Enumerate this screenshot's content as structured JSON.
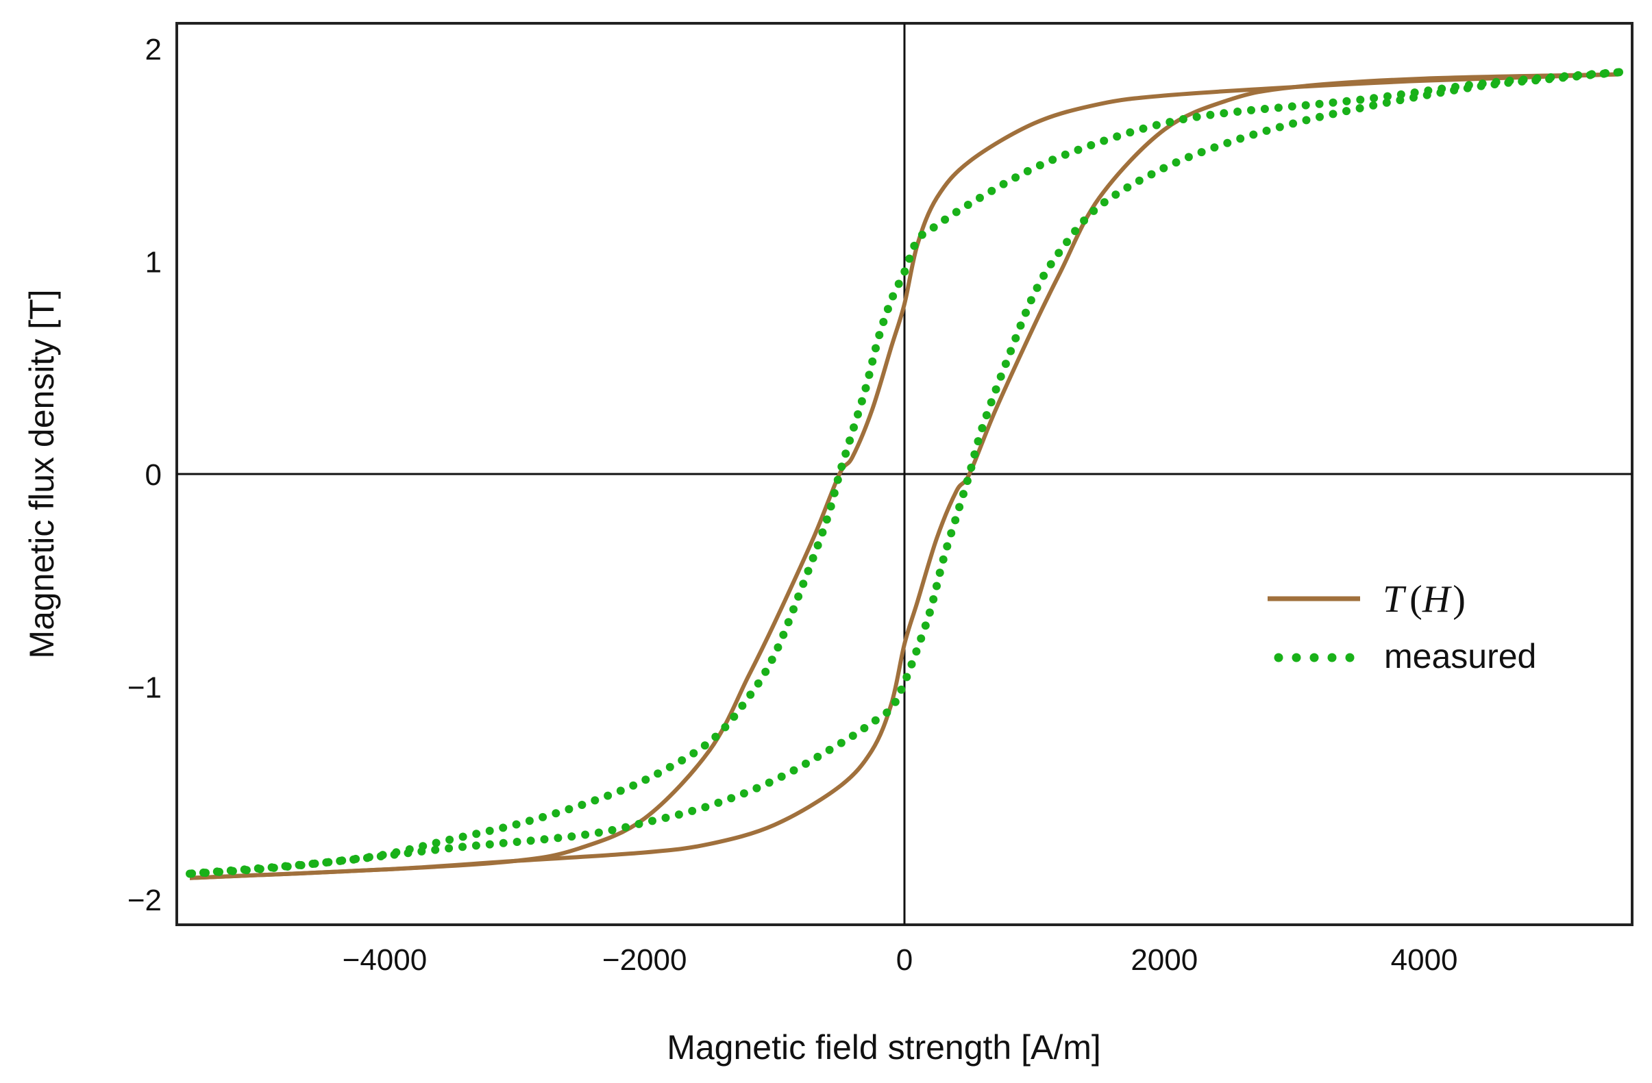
{
  "chart_data": {
    "type": "line",
    "title": "",
    "xlabel": "Magnetic field strength [A/m]",
    "ylabel": "Magnetic flux density [T]",
    "xlim": [
      -5600,
      5600
    ],
    "ylim": [
      -2.12,
      2.12
    ],
    "xticks": [
      -4000,
      -2000,
      0,
      2000,
      4000
    ],
    "xtick_labels": [
      "−4000",
      "−2000",
      "0",
      "2000",
      "4000"
    ],
    "yticks": [
      -2,
      -1,
      0,
      1,
      2
    ],
    "ytick_labels": [
      "−2",
      "−1",
      "0",
      "1",
      "2"
    ],
    "grid": false,
    "zero_axes": true,
    "legend_position": "right",
    "colors": {
      "model": "#a0703c",
      "measured": "#19b119"
    },
    "series": [
      {
        "name": "T(H)",
        "style": "solid",
        "branch_descending": [
          [
            5500,
            1.88
          ],
          [
            4000,
            1.85
          ],
          [
            3000,
            1.82
          ],
          [
            2000,
            1.78
          ],
          [
            1500,
            1.74
          ],
          [
            1000,
            1.65
          ],
          [
            500,
            1.47
          ],
          [
            250,
            1.3
          ],
          [
            100,
            1.08
          ],
          [
            0,
            0.8
          ],
          [
            -100,
            0.6
          ],
          [
            -250,
            0.3
          ],
          [
            -400,
            0.08
          ],
          [
            -500,
            0.0
          ],
          [
            -700,
            -0.3
          ],
          [
            -1000,
            -0.7
          ],
          [
            -1200,
            -0.95
          ],
          [
            -1500,
            -1.3
          ],
          [
            -2000,
            -1.62
          ],
          [
            -2500,
            -1.76
          ],
          [
            -3000,
            -1.82
          ],
          [
            -4000,
            -1.86
          ],
          [
            -5500,
            -1.9
          ]
        ],
        "branch_ascending": [
          [
            -5500,
            -1.9
          ],
          [
            -4000,
            -1.86
          ],
          [
            -3000,
            -1.82
          ],
          [
            -2000,
            -1.78
          ],
          [
            -1500,
            -1.74
          ],
          [
            -1000,
            -1.65
          ],
          [
            -500,
            -1.47
          ],
          [
            -250,
            -1.3
          ],
          [
            -100,
            -1.08
          ],
          [
            0,
            -0.8
          ],
          [
            100,
            -0.6
          ],
          [
            250,
            -0.3
          ],
          [
            400,
            -0.08
          ],
          [
            500,
            0.0
          ],
          [
            700,
            0.3
          ],
          [
            1000,
            0.7
          ],
          [
            1200,
            0.95
          ],
          [
            1500,
            1.3
          ],
          [
            2000,
            1.62
          ],
          [
            2500,
            1.76
          ],
          [
            3000,
            1.82
          ],
          [
            4000,
            1.86
          ],
          [
            5500,
            1.88
          ]
        ]
      },
      {
        "name": "measured",
        "style": "dots",
        "branch_descending": [
          [
            5500,
            1.89
          ],
          [
            4500,
            1.84
          ],
          [
            3500,
            1.76
          ],
          [
            2500,
            1.7
          ],
          [
            2000,
            1.65
          ],
          [
            1500,
            1.56
          ],
          [
            1000,
            1.44
          ],
          [
            500,
            1.27
          ],
          [
            250,
            1.17
          ],
          [
            100,
            1.1
          ],
          [
            0,
            0.95
          ],
          [
            -100,
            0.82
          ],
          [
            -200,
            0.64
          ],
          [
            -300,
            0.4
          ],
          [
            -400,
            0.2
          ],
          [
            -500,
            0.0
          ],
          [
            -600,
            -0.22
          ],
          [
            -800,
            -0.55
          ],
          [
            -1000,
            -0.85
          ],
          [
            -1200,
            -1.05
          ],
          [
            -1500,
            -1.26
          ],
          [
            -2000,
            -1.44
          ],
          [
            -2500,
            -1.56
          ],
          [
            -3000,
            -1.65
          ],
          [
            -3500,
            -1.72
          ],
          [
            -4000,
            -1.79
          ],
          [
            -4500,
            -1.83
          ],
          [
            -5000,
            -1.86
          ],
          [
            -5500,
            -1.88
          ]
        ],
        "branch_ascending": [
          [
            -5500,
            -1.88
          ],
          [
            -4500,
            -1.83
          ],
          [
            -3500,
            -1.76
          ],
          [
            -2500,
            -1.7
          ],
          [
            -2000,
            -1.64
          ],
          [
            -1500,
            -1.56
          ],
          [
            -1000,
            -1.44
          ],
          [
            -500,
            -1.27
          ],
          [
            -250,
            -1.17
          ],
          [
            -100,
            -1.1
          ],
          [
            0,
            -0.98
          ],
          [
            100,
            -0.82
          ],
          [
            200,
            -0.64
          ],
          [
            300,
            -0.4
          ],
          [
            400,
            -0.2
          ],
          [
            500,
            0.0
          ],
          [
            600,
            0.22
          ],
          [
            800,
            0.55
          ],
          [
            1000,
            0.85
          ],
          [
            1200,
            1.05
          ],
          [
            1500,
            1.26
          ],
          [
            2000,
            1.44
          ],
          [
            2500,
            1.56
          ],
          [
            3000,
            1.65
          ],
          [
            3500,
            1.72
          ],
          [
            4000,
            1.78
          ],
          [
            4500,
            1.83
          ],
          [
            5000,
            1.86
          ],
          [
            5500,
            1.89
          ]
        ]
      }
    ],
    "legend": [
      {
        "label_prefix": "T",
        "label_open": "(",
        "label_var": "H",
        "label_close": ")",
        "series": "T(H)"
      },
      {
        "label": "measured",
        "series": "measured"
      }
    ]
  }
}
